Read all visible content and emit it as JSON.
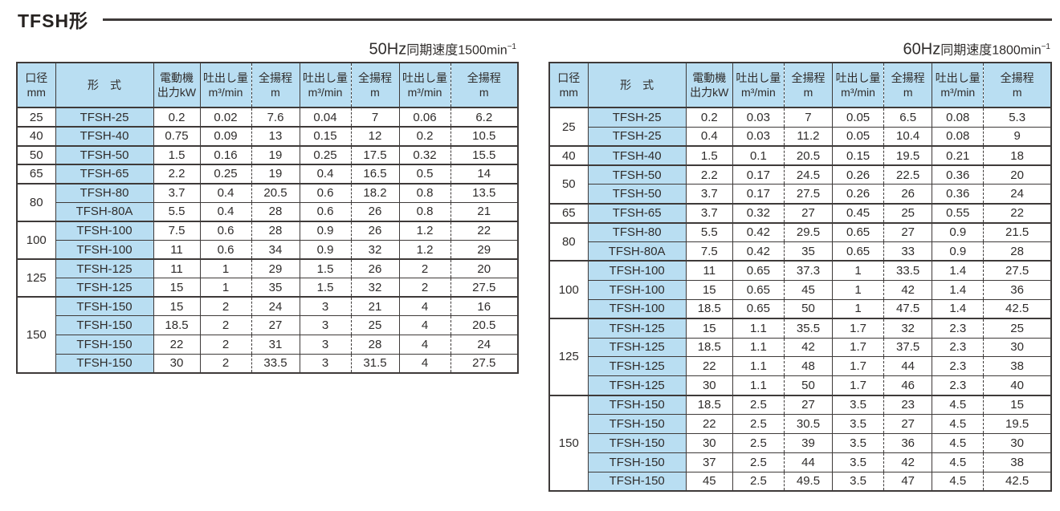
{
  "page": {
    "title": "TFSH形"
  },
  "colors": {
    "header_fill": "#b9def2",
    "border": "#3e3a39",
    "text": "#2f2c2b"
  },
  "columns": {
    "size": {
      "l1": "口径",
      "l2": "mm"
    },
    "model": "形　式",
    "power": {
      "l1": "電動機",
      "l2": "出力kW"
    },
    "flow": {
      "l1": "吐出し量",
      "l2": "m³/min"
    },
    "head": {
      "l1": "全揚程",
      "l2": "m"
    }
  },
  "tables": [
    {
      "id": "50hz",
      "title": {
        "freq": "50Hz",
        "label": "同期速度",
        "value": "1500min",
        "sup": "−1"
      },
      "groups": [
        {
          "size": "25",
          "rows": [
            [
              "TFSH-25",
              "0.2",
              "0.02",
              "7.6",
              "0.04",
              "7",
              "0.06",
              "6.2"
            ]
          ]
        },
        {
          "size": "40",
          "rows": [
            [
              "TFSH-40",
              "0.75",
              "0.09",
              "13",
              "0.15",
              "12",
              "0.2",
              "10.5"
            ]
          ]
        },
        {
          "size": "50",
          "rows": [
            [
              "TFSH-50",
              "1.5",
              "0.16",
              "19",
              "0.25",
              "17.5",
              "0.32",
              "15.5"
            ]
          ]
        },
        {
          "size": "65",
          "rows": [
            [
              "TFSH-65",
              "2.2",
              "0.25",
              "19",
              "0.4",
              "16.5",
              "0.5",
              "14"
            ]
          ]
        },
        {
          "size": "80",
          "rows": [
            [
              "TFSH-80",
              "3.7",
              "0.4",
              "20.5",
              "0.6",
              "18.2",
              "0.8",
              "13.5"
            ],
            [
              "TFSH-80A",
              "5.5",
              "0.4",
              "28",
              "0.6",
              "26",
              "0.8",
              "21"
            ]
          ]
        },
        {
          "size": "100",
          "rows": [
            [
              "TFSH-100",
              "7.5",
              "0.6",
              "28",
              "0.9",
              "26",
              "1.2",
              "22"
            ],
            [
              "TFSH-100",
              "11",
              "0.6",
              "34",
              "0.9",
              "32",
              "1.2",
              "29"
            ]
          ]
        },
        {
          "size": "125",
          "rows": [
            [
              "TFSH-125",
              "11",
              "1",
              "29",
              "1.5",
              "26",
              "2",
              "20"
            ],
            [
              "TFSH-125",
              "15",
              "1",
              "35",
              "1.5",
              "32",
              "2",
              "27.5"
            ]
          ]
        },
        {
          "size": "150",
          "rows": [
            [
              "TFSH-150",
              "15",
              "2",
              "24",
              "3",
              "21",
              "4",
              "16"
            ],
            [
              "TFSH-150",
              "18.5",
              "2",
              "27",
              "3",
              "25",
              "4",
              "20.5"
            ],
            [
              "TFSH-150",
              "22",
              "2",
              "31",
              "3",
              "28",
              "4",
              "24"
            ],
            [
              "TFSH-150",
              "30",
              "2",
              "33.5",
              "3",
              "31.5",
              "4",
              "27.5"
            ]
          ]
        }
      ]
    },
    {
      "id": "60hz",
      "title": {
        "freq": "60Hz",
        "label": "同期速度",
        "value": "1800min",
        "sup": "−1"
      },
      "groups": [
        {
          "size": "25",
          "rows": [
            [
              "TFSH-25",
              "0.2",
              "0.03",
              "7",
              "0.05",
              "6.5",
              "0.08",
              "5.3"
            ],
            [
              "TFSH-25",
              "0.4",
              "0.03",
              "11.2",
              "0.05",
              "10.4",
              "0.08",
              "9"
            ]
          ]
        },
        {
          "size": "40",
          "rows": [
            [
              "TFSH-40",
              "1.5",
              "0.1",
              "20.5",
              "0.15",
              "19.5",
              "0.21",
              "18"
            ]
          ]
        },
        {
          "size": "50",
          "rows": [
            [
              "TFSH-50",
              "2.2",
              "0.17",
              "24.5",
              "0.26",
              "22.5",
              "0.36",
              "20"
            ],
            [
              "TFSH-50",
              "3.7",
              "0.17",
              "27.5",
              "0.26",
              "26",
              "0.36",
              "24"
            ]
          ]
        },
        {
          "size": "65",
          "rows": [
            [
              "TFSH-65",
              "3.7",
              "0.32",
              "27",
              "0.45",
              "25",
              "0.55",
              "22"
            ]
          ]
        },
        {
          "size": "80",
          "rows": [
            [
              "TFSH-80",
              "5.5",
              "0.42",
              "29.5",
              "0.65",
              "27",
              "0.9",
              "21.5"
            ],
            [
              "TFSH-80A",
              "7.5",
              "0.42",
              "35",
              "0.65",
              "33",
              "0.9",
              "28"
            ]
          ]
        },
        {
          "size": "100",
          "rows": [
            [
              "TFSH-100",
              "11",
              "0.65",
              "37.3",
              "1",
              "33.5",
              "1.4",
              "27.5"
            ],
            [
              "TFSH-100",
              "15",
              "0.65",
              "45",
              "1",
              "42",
              "1.4",
              "36"
            ],
            [
              "TFSH-100",
              "18.5",
              "0.65",
              "50",
              "1",
              "47.5",
              "1.4",
              "42.5"
            ]
          ]
        },
        {
          "size": "125",
          "rows": [
            [
              "TFSH-125",
              "15",
              "1.1",
              "35.5",
              "1.7",
              "32",
              "2.3",
              "25"
            ],
            [
              "TFSH-125",
              "18.5",
              "1.1",
              "42",
              "1.7",
              "37.5",
              "2.3",
              "30"
            ],
            [
              "TFSH-125",
              "22",
              "1.1",
              "48",
              "1.7",
              "44",
              "2.3",
              "38"
            ],
            [
              "TFSH-125",
              "30",
              "1.1",
              "50",
              "1.7",
              "46",
              "2.3",
              "40"
            ]
          ]
        },
        {
          "size": "150",
          "rows": [
            [
              "TFSH-150",
              "18.5",
              "2.5",
              "27",
              "3.5",
              "23",
              "4.5",
              "15"
            ],
            [
              "TFSH-150",
              "22",
              "2.5",
              "30.5",
              "3.5",
              "27",
              "4.5",
              "19.5"
            ],
            [
              "TFSH-150",
              "30",
              "2.5",
              "39",
              "3.5",
              "36",
              "4.5",
              "30"
            ],
            [
              "TFSH-150",
              "37",
              "2.5",
              "44",
              "3.5",
              "42",
              "4.5",
              "38"
            ],
            [
              "TFSH-150",
              "45",
              "2.5",
              "49.5",
              "3.5",
              "47",
              "4.5",
              "42.5"
            ]
          ]
        }
      ]
    }
  ]
}
